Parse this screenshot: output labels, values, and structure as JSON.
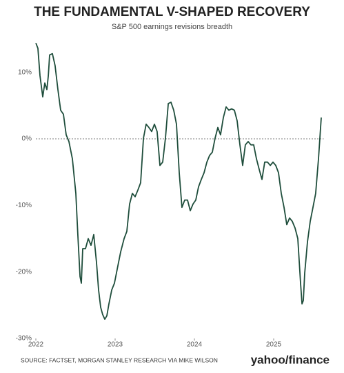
{
  "chart_data": {
    "type": "line",
    "title": "THE FUNDAMENTAL V-SHAPED RECOVERY",
    "subtitle": "S&P 500 earnings revisions breadth",
    "source": "SOURCE: FACTSET, MORGAN STANLEY RESEARCH VIA MIKE WILSON",
    "brand": "yahoo/finance",
    "xlim": [
      2022,
      2025.7
    ],
    "xticks": [
      2022,
      2023,
      2024,
      2025
    ],
    "ylim": [
      -30,
      15
    ],
    "yticks": [
      {
        "value": 10,
        "label": "10%"
      },
      {
        "value": 0,
        "label": "0%"
      },
      {
        "value": -10,
        "label": "-10%"
      },
      {
        "value": -20,
        "label": "-20%"
      },
      {
        "value": -30,
        "label": "-30%"
      }
    ],
    "hline": 0,
    "x": [
      2022.0,
      2022.026,
      2022.052,
      2022.087,
      2022.113,
      2022.139,
      2022.157,
      2022.174,
      2022.209,
      2022.243,
      2022.278,
      2022.313,
      2022.348,
      2022.383,
      2022.417,
      2022.461,
      2022.504,
      2022.53,
      2022.557,
      2022.574,
      2022.591,
      2022.626,
      2022.661,
      2022.696,
      2022.73,
      2022.765,
      2022.791,
      2022.817,
      2022.843,
      2022.87,
      2022.896,
      2022.922,
      2022.957,
      2022.991,
      2023.026,
      2023.07,
      2023.113,
      2023.148,
      2023.183,
      2023.217,
      2023.252,
      2023.287,
      2023.322,
      2023.357,
      2023.391,
      2023.426,
      2023.461,
      2023.496,
      2023.53,
      2023.565,
      2023.6,
      2023.635,
      2023.67,
      2023.704,
      2023.739,
      2023.774,
      2023.809,
      2023.843,
      2023.878,
      2023.913,
      2023.948,
      2023.983,
      2024.017,
      2024.052,
      2024.087,
      2024.122,
      2024.157,
      2024.191,
      2024.226,
      2024.261,
      2024.296,
      2024.33,
      2024.365,
      2024.4,
      2024.435,
      2024.47,
      2024.504,
      2024.539,
      2024.574,
      2024.609,
      2024.643,
      2024.678,
      2024.713,
      2024.748,
      2024.783,
      2024.817,
      2024.852,
      2024.887,
      2024.922,
      2024.957,
      2024.991,
      2025.026,
      2025.061,
      2025.096,
      2025.13,
      2025.165,
      2025.2,
      2025.235,
      2025.27,
      2025.304,
      2025.339,
      2025.357,
      2025.374,
      2025.391,
      2025.426,
      2025.461,
      2025.496,
      2025.53,
      2025.565,
      2025.6
    ],
    "series": [
      {
        "color": "#1e4d3b",
        "values": [
          14.4,
          13.6,
          9.5,
          6.3,
          8.4,
          7.4,
          9.5,
          12.6,
          12.8,
          11,
          7.4,
          4.3,
          3.7,
          0.6,
          -0.4,
          -3,
          -8.2,
          -14.4,
          -20.7,
          -21.7,
          -16.5,
          -16.5,
          -15,
          -16,
          -14.4,
          -18.6,
          -22.7,
          -25.3,
          -26.4,
          -27.1,
          -26.6,
          -24.8,
          -22.7,
          -21.7,
          -19.6,
          -17,
          -15,
          -13.9,
          -9.8,
          -8.2,
          -8.7,
          -7.7,
          -6.6,
          0.1,
          2.2,
          1.7,
          1.1,
          2.2,
          1.1,
          -4,
          -3.5,
          0.1,
          5.3,
          5.5,
          4.3,
          2.2,
          -5.1,
          -10.3,
          -9.2,
          -9.2,
          -10.8,
          -9.8,
          -9.2,
          -7.2,
          -6.1,
          -5.1,
          -3.5,
          -2.5,
          -2,
          0.1,
          1.7,
          0.6,
          3.2,
          4.8,
          4.3,
          4.5,
          4.3,
          2.7,
          -0.9,
          -4,
          -0.9,
          -0.4,
          -0.9,
          -0.9,
          -3,
          -4.6,
          -6.1,
          -3.5,
          -3.5,
          -4,
          -3.5,
          -4,
          -5.1,
          -8.2,
          -10.3,
          -12.9,
          -11.9,
          -12.4,
          -13.4,
          -15,
          -21.7,
          -24.8,
          -24.3,
          -20.2,
          -15.5,
          -12.4,
          -10.3,
          -8.2,
          -3,
          3.2
        ]
      }
    ]
  }
}
